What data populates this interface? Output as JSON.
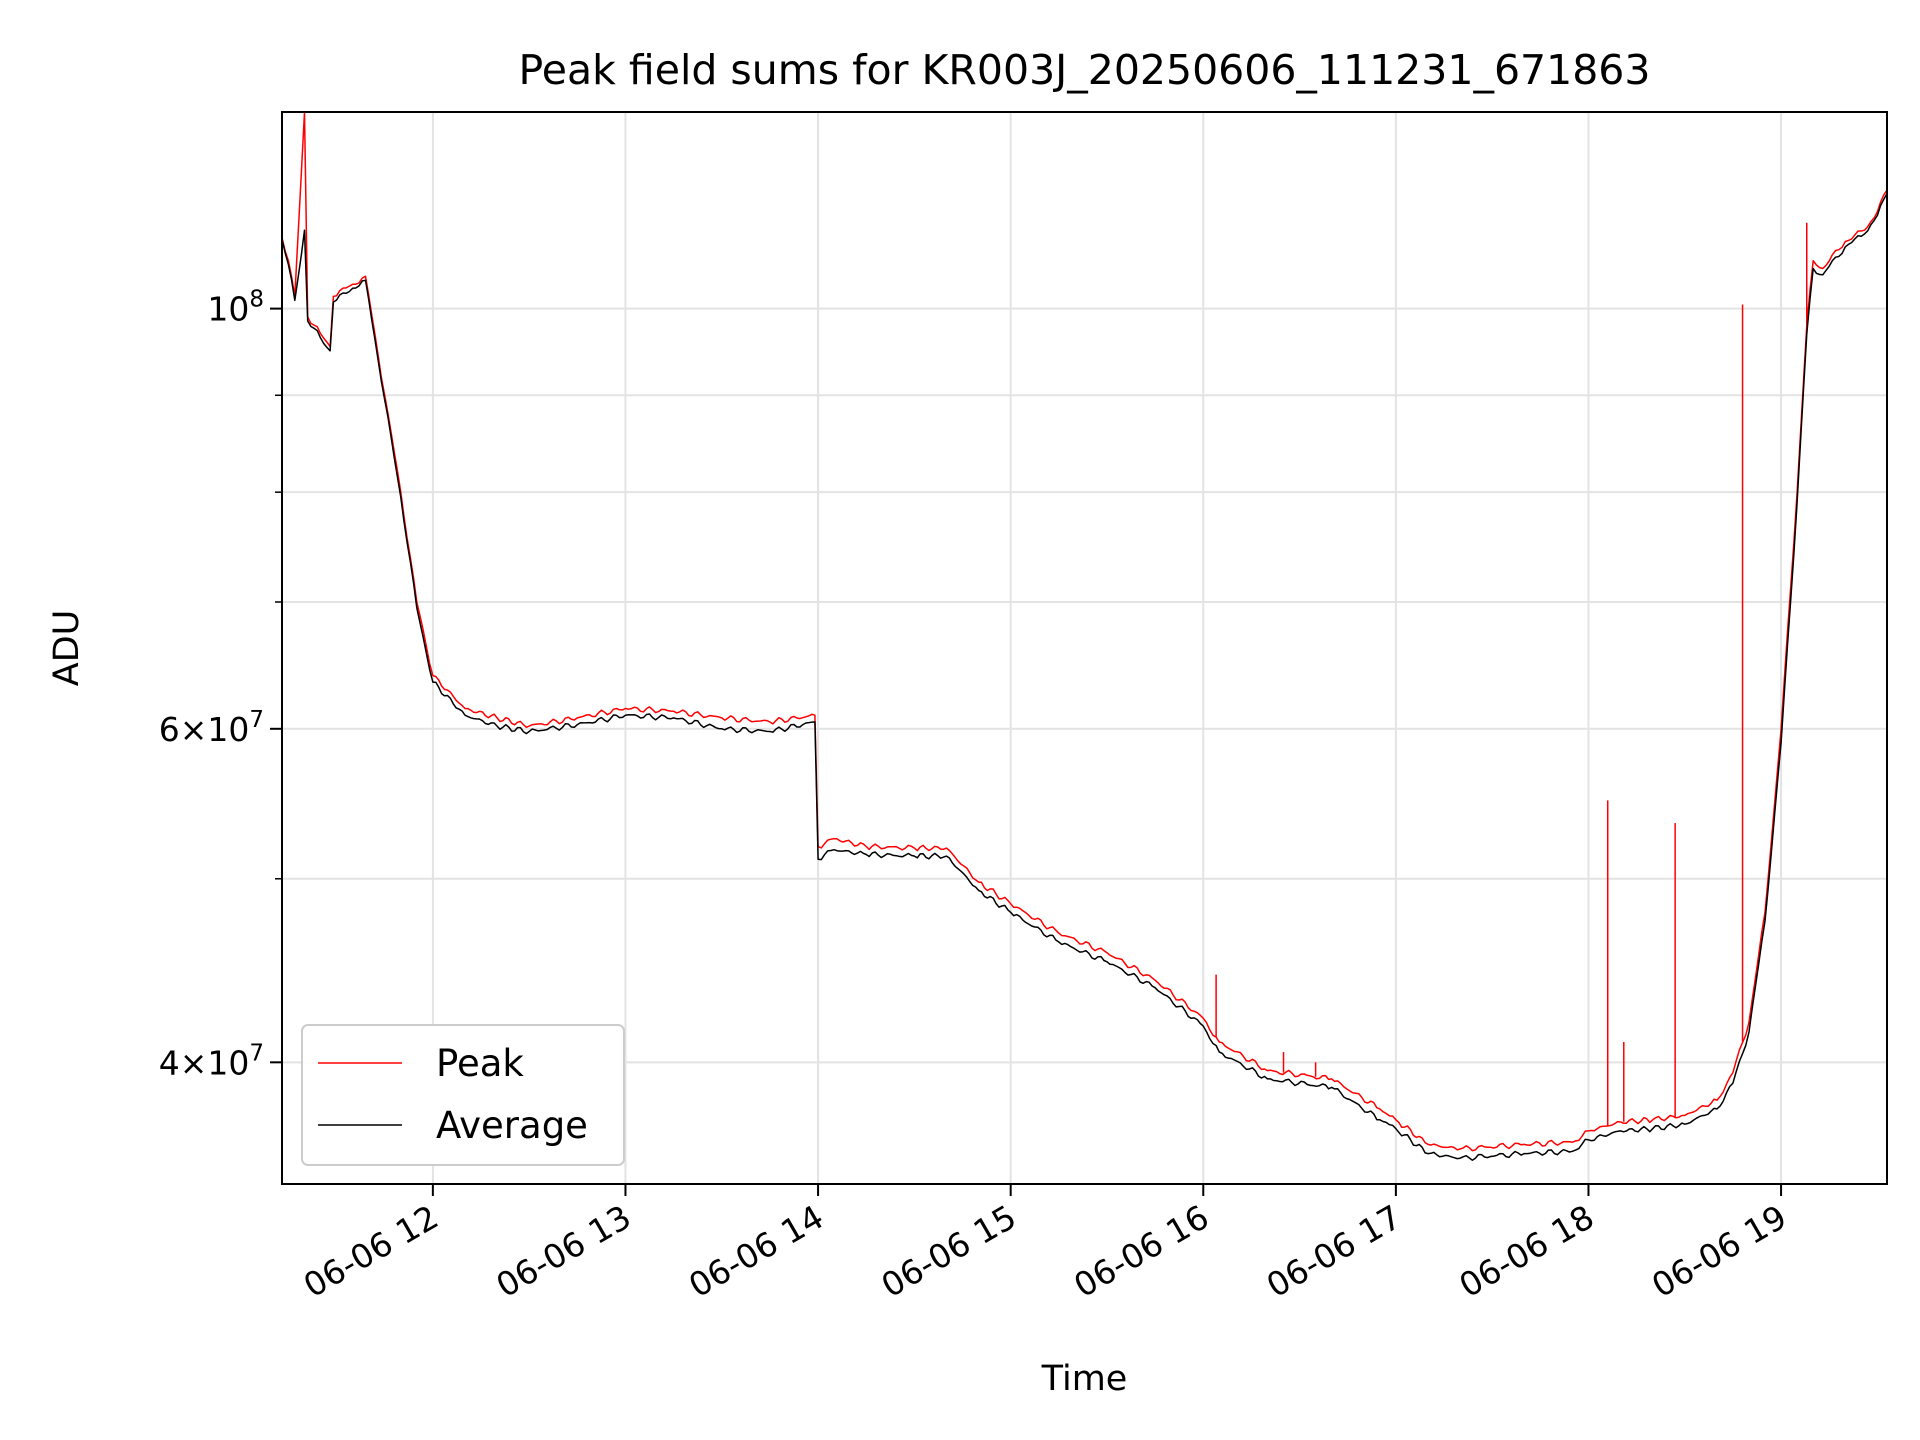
{
  "chart_data": {
    "type": "line",
    "title": "Peak field sums for KR003J_20250606_111231_671863",
    "xlabel": "Time",
    "ylabel": "ADU",
    "yscale": "log",
    "grid": true,
    "legend_position": "lower-left",
    "xlim": [
      "06-06 11:13",
      "06-06 19:33"
    ],
    "ylim": [
      34500000,
      127000000
    ],
    "x_ticks": [
      "06-06 12",
      "06-06 13",
      "06-06 14",
      "06-06 15",
      "06-06 16",
      "06-06 17",
      "06-06 18",
      "06-06 19"
    ],
    "y_ticks": [
      {
        "value": 100000000,
        "label": "10^8"
      },
      {
        "value": 60000000,
        "label": "6×10^7"
      },
      {
        "value": 40000000,
        "label": "4×10^7"
      }
    ],
    "series": [
      {
        "name": "Peak",
        "color": "#ff0000",
        "points": [
          [
            "06-06 11:13",
            109000000
          ],
          [
            "06-06 11:15",
            106000000
          ],
          [
            "06-06 11:17",
            101500000
          ],
          [
            "06-06 11:20",
            127000000
          ],
          [
            "06-06 11:21",
            99000000
          ],
          [
            "06-06 11:25",
            97000000
          ],
          [
            "06-06 11:28",
            95500000
          ],
          [
            "06-06 11:29",
            101500000
          ],
          [
            "06-06 11:35",
            103000000
          ],
          [
            "06-06 11:39",
            104000000
          ],
          [
            "06-06 11:45",
            90000000
          ],
          [
            "06-06 11:50",
            80000000
          ],
          [
            "06-06 11:55",
            70000000
          ],
          [
            "06-06 12:00",
            64000000
          ],
          [
            "06-06 12:10",
            61500000
          ],
          [
            "06-06 12:20",
            60800000
          ],
          [
            "06-06 12:30",
            60200000
          ],
          [
            "06-06 12:45",
            60800000
          ],
          [
            "06-06 13:00",
            61500000
          ],
          [
            "06-06 13:15",
            61300000
          ],
          [
            "06-06 13:30",
            60800000
          ],
          [
            "06-06 13:45",
            60500000
          ],
          [
            "06-06 13:59",
            61000000
          ],
          [
            "06-06 14:00",
            52000000
          ],
          [
            "06-06 14:05",
            52500000
          ],
          [
            "06-06 14:15",
            52000000
          ],
          [
            "06-06 14:30",
            51900000
          ],
          [
            "06-06 14:40",
            51900000
          ],
          [
            "06-06 14:50",
            49800000
          ],
          [
            "06-06 15:00",
            48500000
          ],
          [
            "06-06 15:15",
            46800000
          ],
          [
            "06-06 15:30",
            45700000
          ],
          [
            "06-06 15:45",
            44200000
          ],
          [
            "06-06 16:00",
            42200000
          ],
          [
            "06-06 16:05",
            41000000
          ],
          [
            "06-06 16:20",
            39600000
          ],
          [
            "06-06 16:40",
            39200000
          ],
          [
            "06-06 16:55",
            37800000
          ],
          [
            "06-06 17:00",
            37300000
          ],
          [
            "06-06 17:10",
            36200000
          ],
          [
            "06-06 17:20",
            36000000
          ],
          [
            "06-06 17:40",
            36200000
          ],
          [
            "06-06 17:55",
            36300000
          ],
          [
            "06-06 18:00",
            36800000
          ],
          [
            "06-06 18:10",
            37200000
          ],
          [
            "06-06 18:20",
            37300000
          ],
          [
            "06-06 18:30",
            37500000
          ],
          [
            "06-06 18:40",
            38200000
          ],
          [
            "06-06 18:45",
            39500000
          ],
          [
            "06-06 18:50",
            42000000
          ],
          [
            "06-06 18:55",
            48000000
          ],
          [
            "06-06 19:00",
            60000000
          ],
          [
            "06-06 19:05",
            80000000
          ],
          [
            "06-06 19:08",
            98000000
          ],
          [
            "06-06 19:10",
            106000000
          ],
          [
            "06-06 19:13",
            105000000
          ],
          [
            "06-06 19:20",
            108500000
          ],
          [
            "06-06 19:26",
            110000000
          ],
          [
            "06-06 19:30",
            112500000
          ],
          [
            "06-06 19:33",
            115500000
          ]
        ],
        "spikes": [
          [
            "06-06 11:20",
            127000000
          ],
          [
            "06-06 16:04",
            44500000
          ],
          [
            "06-06 16:25",
            40500000
          ],
          [
            "06-06 16:35",
            40000000
          ],
          [
            "06-06 18:06",
            55000000
          ],
          [
            "06-06 18:11",
            41000000
          ],
          [
            "06-06 18:27",
            53500000
          ],
          [
            "06-06 18:48",
            100500000
          ],
          [
            "06-06 19:08",
            111000000
          ]
        ]
      },
      {
        "name": "Average",
        "color": "#000000",
        "points": [
          [
            "06-06 11:13",
            108800000
          ],
          [
            "06-06 11:15",
            105500000
          ],
          [
            "06-06 11:17",
            101000000
          ],
          [
            "06-06 11:20",
            110000000
          ],
          [
            "06-06 11:21",
            98500000
          ],
          [
            "06-06 11:25",
            96500000
          ],
          [
            "06-06 11:28",
            95000000
          ],
          [
            "06-06 11:29",
            100800000
          ],
          [
            "06-06 11:35",
            102500000
          ],
          [
            "06-06 11:39",
            103500000
          ],
          [
            "06-06 11:45",
            89500000
          ],
          [
            "06-06 11:50",
            79500000
          ],
          [
            "06-06 11:55",
            69500000
          ],
          [
            "06-06 12:00",
            63500000
          ],
          [
            "06-06 12:10",
            61000000
          ],
          [
            "06-06 12:20",
            60200000
          ],
          [
            "06-06 12:30",
            59800000
          ],
          [
            "06-06 12:45",
            60300000
          ],
          [
            "06-06 13:00",
            61000000
          ],
          [
            "06-06 13:15",
            60800000
          ],
          [
            "06-06 13:30",
            60000000
          ],
          [
            "06-06 13:45",
            59800000
          ],
          [
            "06-06 13:59",
            60500000
          ],
          [
            "06-06 14:00",
            51200000
          ],
          [
            "06-06 14:05",
            51800000
          ],
          [
            "06-06 14:15",
            51500000
          ],
          [
            "06-06 14:30",
            51400000
          ],
          [
            "06-06 14:40",
            51400000
          ],
          [
            "06-06 14:50",
            49300000
          ],
          [
            "06-06 15:00",
            48000000
          ],
          [
            "06-06 15:15",
            46300000
          ],
          [
            "06-06 15:30",
            45200000
          ],
          [
            "06-06 15:45",
            43800000
          ],
          [
            "06-06 16:00",
            41800000
          ],
          [
            "06-06 16:05",
            40500000
          ],
          [
            "06-06 16:20",
            39200000
          ],
          [
            "06-06 16:40",
            38800000
          ],
          [
            "06-06 16:55",
            37300000
          ],
          [
            "06-06 17:00",
            36900000
          ],
          [
            "06-06 17:10",
            35800000
          ],
          [
            "06-06 17:20",
            35600000
          ],
          [
            "06-06 17:40",
            35800000
          ],
          [
            "06-06 17:55",
            35900000
          ],
          [
            "06-06 18:00",
            36400000
          ],
          [
            "06-06 18:10",
            36800000
          ],
          [
            "06-06 18:20",
            36900000
          ],
          [
            "06-06 18:30",
            37100000
          ],
          [
            "06-06 18:40",
            37800000
          ],
          [
            "06-06 18:45",
            39000000
          ],
          [
            "06-06 18:50",
            41500000
          ],
          [
            "06-06 18:55",
            47500000
          ],
          [
            "06-06 19:00",
            59000000
          ],
          [
            "06-06 19:05",
            79000000
          ],
          [
            "06-06 19:08",
            97000000
          ],
          [
            "06-06 19:10",
            105000000
          ],
          [
            "06-06 19:13",
            104200000
          ],
          [
            "06-06 19:20",
            107800000
          ],
          [
            "06-06 19:26",
            109500000
          ],
          [
            "06-06 19:30",
            112000000
          ],
          [
            "06-06 19:33",
            115000000
          ]
        ]
      }
    ]
  }
}
